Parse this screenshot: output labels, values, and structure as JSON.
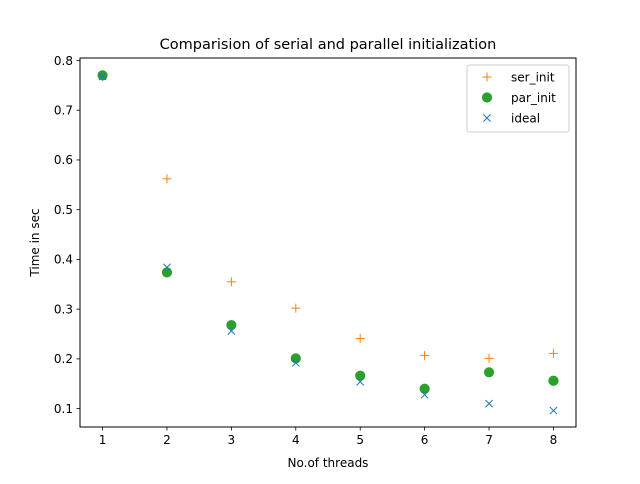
{
  "chart_data": {
    "type": "scatter",
    "title": "Comparision of serial and parallel initialization",
    "xlabel": "No.of threads",
    "ylabel": "Time in sec",
    "xlim": [
      0.65,
      8.35
    ],
    "ylim": [
      0.063,
      0.805
    ],
    "xticks": [
      1,
      2,
      3,
      4,
      5,
      6,
      7,
      8
    ],
    "yticks": [
      0.1,
      0.2,
      0.3,
      0.4,
      0.5,
      0.6,
      0.7,
      0.8
    ],
    "ytick_labels": [
      "0.1",
      "0.2",
      "0.3",
      "0.4",
      "0.5",
      "0.6",
      "0.7",
      "0.8"
    ],
    "grid": false,
    "legend_position": "top-right",
    "x": [
      1,
      2,
      3,
      4,
      5,
      6,
      7,
      8
    ],
    "series": [
      {
        "name": "ser_init",
        "marker": "plus",
        "color": "#ff7f0e",
        "values": [
          0.768,
          0.562,
          0.355,
          0.302,
          0.241,
          0.207,
          0.201,
          0.211
        ]
      },
      {
        "name": "par_init",
        "marker": "circle",
        "color": "#2ca02c",
        "values": [
          0.77,
          0.374,
          0.268,
          0.201,
          0.166,
          0.14,
          0.173,
          0.156
        ]
      },
      {
        "name": "ideal",
        "marker": "x",
        "color": "#1f77b4",
        "values": [
          0.768,
          0.384,
          0.256,
          0.192,
          0.154,
          0.128,
          0.11,
          0.096
        ]
      }
    ]
  }
}
